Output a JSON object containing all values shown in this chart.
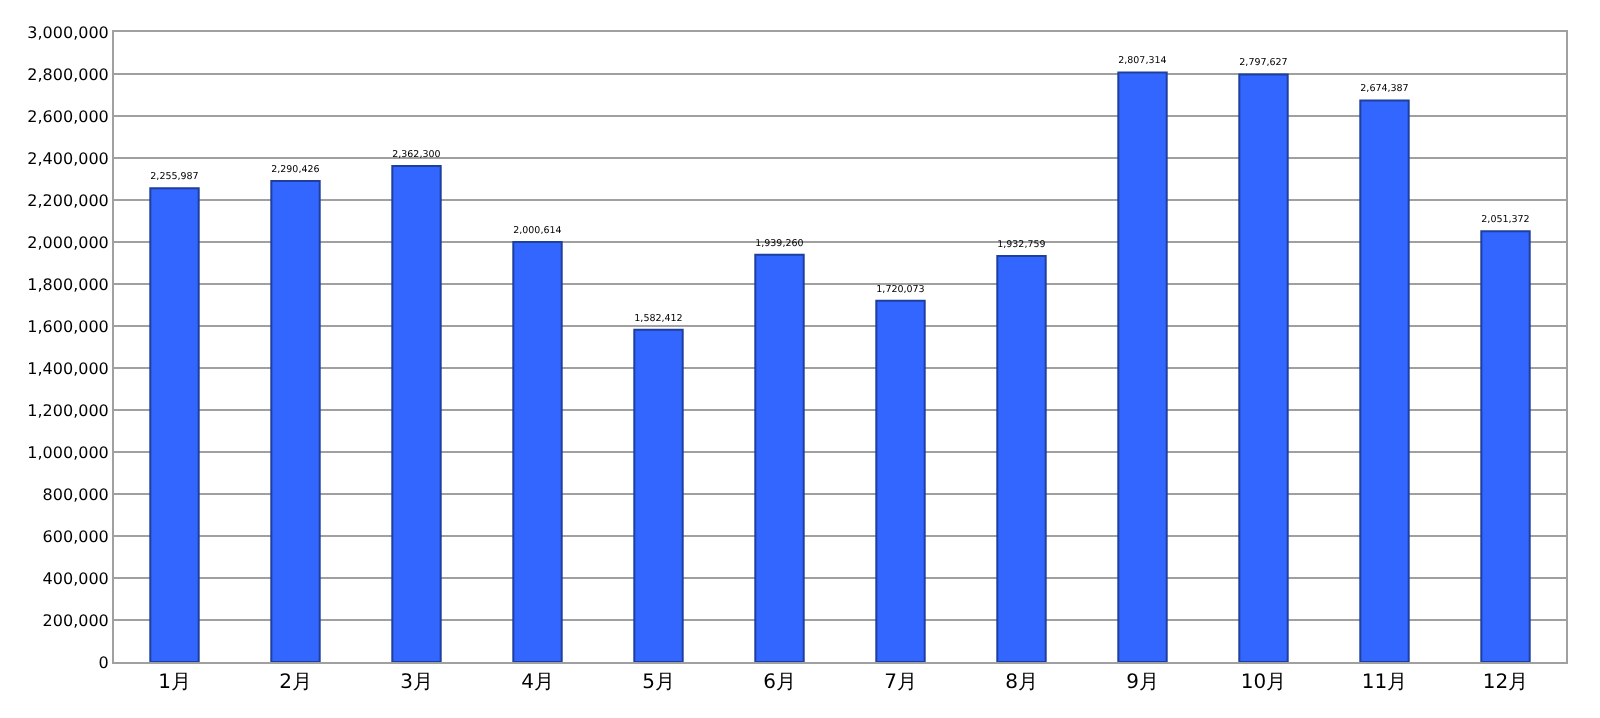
{
  "chart_data": {
    "type": "bar",
    "categories": [
      "1月",
      "2月",
      "3月",
      "4月",
      "5月",
      "6月",
      "7月",
      "8月",
      "9月",
      "10月",
      "11月",
      "12月"
    ],
    "values": [
      2255987,
      2290426,
      2362300,
      2000614,
      1582412,
      1939260,
      1720073,
      1932759,
      2807314,
      2797627,
      2674387,
      2051372
    ],
    "value_labels": [
      "2,255,987",
      "2,290,426",
      "2,362,300",
      "2,000,614",
      "1,582,412",
      "1,939,260",
      "1,720,073",
      "1,932,759",
      "2,807,314",
      "2,797,627",
      "2,674,387",
      "2,051,372"
    ],
    "color": "#3366ff",
    "grid": "y",
    "ylim": [
      0,
      3000000
    ],
    "yticks": [
      {
        "value": 0,
        "label": "0"
      },
      {
        "value": 200000,
        "label": "200,000"
      },
      {
        "value": 400000,
        "label": "400,000"
      },
      {
        "value": 600000,
        "label": "600,000"
      },
      {
        "value": 800000,
        "label": "800,000"
      },
      {
        "value": 1000000,
        "label": "1,000,000"
      },
      {
        "value": 1200000,
        "label": "1,200,000"
      },
      {
        "value": 1400000,
        "label": "1,400,000"
      },
      {
        "value": 1600000,
        "label": "1,600,000"
      },
      {
        "value": 1800000,
        "label": "1,800,000"
      },
      {
        "value": 2000000,
        "label": "2,000,000"
      },
      {
        "value": 2200000,
        "label": "2,200,000"
      },
      {
        "value": 2400000,
        "label": "2,400,000"
      },
      {
        "value": 2600000,
        "label": "2,600,000"
      },
      {
        "value": 2800000,
        "label": "2,800,000"
      },
      {
        "value": 3000000,
        "label": "3,000,000"
      }
    ]
  }
}
